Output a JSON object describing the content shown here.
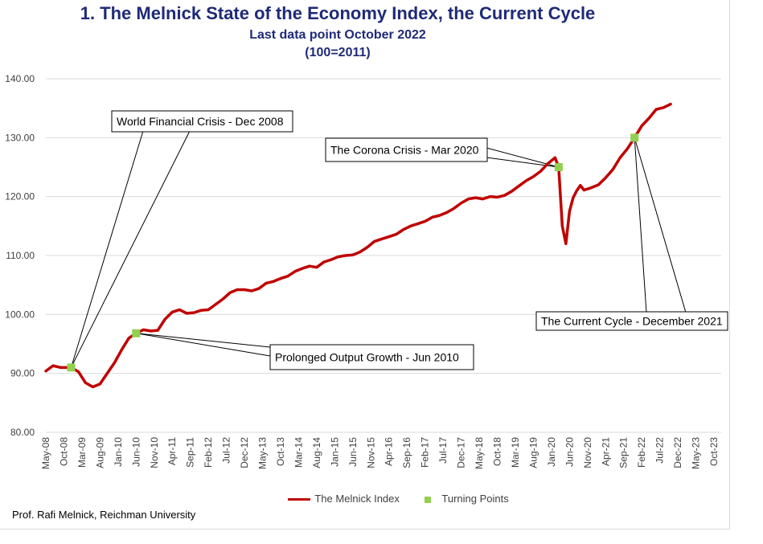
{
  "title": "1.  The Melnick State of the Economy Index, the Current Cycle",
  "subtitle1": "Last data point October 2022",
  "subtitle2": "(100=2011)",
  "credit": "Prof. Rafi Melnick, Reichman University",
  "colors": {
    "series": "#c00000",
    "points": "#92d050",
    "title": "#1f2a78",
    "grid": "#d9d9d9"
  },
  "chart_data": {
    "type": "line",
    "title": "1.  The Melnick State of the Economy Index, the Current Cycle",
    "xlabel": "",
    "ylabel": "",
    "ylim": [
      80,
      140
    ],
    "yticks": [
      "80.00",
      "90.00",
      "100.00",
      "110.00",
      "120.00",
      "130.00",
      "140.00"
    ],
    "xlim": [
      "2008-05",
      "2023-12"
    ],
    "xticks": [
      "May-08",
      "Oct-08",
      "Mar-09",
      "Aug-09",
      "Jan-10",
      "Jun-10",
      "Nov-10",
      "Apr-11",
      "Sep-11",
      "Feb-12",
      "Jul-12",
      "Dec-12",
      "May-13",
      "Oct-13",
      "Mar-14",
      "Aug-14",
      "Jan-15",
      "Jun-15",
      "Nov-15",
      "Apr-16",
      "Sep-16",
      "Feb-17",
      "Jul-17",
      "Dec-17",
      "May-18",
      "Oct-18",
      "Mar-19",
      "Aug-19",
      "Jan-20",
      "Jun-20",
      "Nov-20",
      "Apr-21",
      "Sep-21",
      "Feb-22",
      "Jul-22",
      "Dec-22",
      "May-23",
      "Oct-23"
    ],
    "grid": "horizontal",
    "legend_position": "bottom",
    "series": [
      {
        "name": "The Melnick Index",
        "points": [
          [
            "2008-05",
            90.4
          ],
          [
            "2008-07",
            91.3
          ],
          [
            "2008-09",
            91.0
          ],
          [
            "2008-12",
            91.0
          ],
          [
            "2009-02",
            90.3
          ],
          [
            "2009-04",
            88.4
          ],
          [
            "2009-06",
            87.7
          ],
          [
            "2009-08",
            88.2
          ],
          [
            "2009-10",
            90.0
          ],
          [
            "2009-12",
            91.8
          ],
          [
            "2010-02",
            94.0
          ],
          [
            "2010-04",
            96.0
          ],
          [
            "2010-06",
            96.8
          ],
          [
            "2010-08",
            97.4
          ],
          [
            "2010-10",
            97.2
          ],
          [
            "2010-12",
            97.3
          ],
          [
            "2011-02",
            99.2
          ],
          [
            "2011-04",
            100.4
          ],
          [
            "2011-06",
            100.8
          ],
          [
            "2011-08",
            100.2
          ],
          [
            "2011-10",
            100.3
          ],
          [
            "2011-12",
            100.7
          ],
          [
            "2012-02",
            100.8
          ],
          [
            "2012-04",
            101.7
          ],
          [
            "2012-06",
            102.6
          ],
          [
            "2012-08",
            103.7
          ],
          [
            "2012-10",
            104.2
          ],
          [
            "2012-12",
            104.2
          ],
          [
            "2013-02",
            104.0
          ],
          [
            "2013-04",
            104.4
          ],
          [
            "2013-06",
            105.3
          ],
          [
            "2013-08",
            105.6
          ],
          [
            "2013-10",
            106.1
          ],
          [
            "2013-12",
            106.5
          ],
          [
            "2014-02",
            107.3
          ],
          [
            "2014-04",
            107.8
          ],
          [
            "2014-06",
            108.2
          ],
          [
            "2014-08",
            108.0
          ],
          [
            "2014-10",
            108.9
          ],
          [
            "2014-12",
            109.3
          ],
          [
            "2015-02",
            109.8
          ],
          [
            "2015-04",
            110.0
          ],
          [
            "2015-06",
            110.1
          ],
          [
            "2015-08",
            110.6
          ],
          [
            "2015-10",
            111.4
          ],
          [
            "2015-12",
            112.4
          ],
          [
            "2016-02",
            112.8
          ],
          [
            "2016-04",
            113.2
          ],
          [
            "2016-06",
            113.6
          ],
          [
            "2016-08",
            114.4
          ],
          [
            "2016-10",
            115.0
          ],
          [
            "2016-12",
            115.4
          ],
          [
            "2017-02",
            115.8
          ],
          [
            "2017-04",
            116.5
          ],
          [
            "2017-06",
            116.8
          ],
          [
            "2017-08",
            117.3
          ],
          [
            "2017-10",
            118.0
          ],
          [
            "2017-12",
            118.9
          ],
          [
            "2018-02",
            119.6
          ],
          [
            "2018-04",
            119.8
          ],
          [
            "2018-06",
            119.6
          ],
          [
            "2018-08",
            120.0
          ],
          [
            "2018-10",
            119.9
          ],
          [
            "2018-12",
            120.2
          ],
          [
            "2019-02",
            120.9
          ],
          [
            "2019-04",
            121.8
          ],
          [
            "2019-06",
            122.7
          ],
          [
            "2019-08",
            123.4
          ],
          [
            "2019-10",
            124.3
          ],
          [
            "2019-12",
            125.6
          ],
          [
            "2020-02",
            126.6
          ],
          [
            "2020-03",
            125.0
          ],
          [
            "2020-04",
            115.0
          ],
          [
            "2020-05",
            112.0
          ],
          [
            "2020-06",
            117.5
          ],
          [
            "2020-07",
            119.8
          ],
          [
            "2020-08",
            121.0
          ],
          [
            "2020-09",
            121.9
          ],
          [
            "2020-10",
            121.1
          ],
          [
            "2020-12",
            121.5
          ],
          [
            "2021-02",
            122.0
          ],
          [
            "2021-04",
            123.2
          ],
          [
            "2021-06",
            124.6
          ],
          [
            "2021-08",
            126.6
          ],
          [
            "2021-10",
            128.1
          ],
          [
            "2021-12",
            130.0
          ],
          [
            "2022-02",
            132.0
          ],
          [
            "2022-04",
            133.3
          ],
          [
            "2022-06",
            134.8
          ],
          [
            "2022-08",
            135.1
          ],
          [
            "2022-10",
            135.7
          ]
        ]
      },
      {
        "name": "Turning Points",
        "points": [
          [
            "2008-12",
            91.0
          ],
          [
            "2010-06",
            96.8
          ],
          [
            "2020-03",
            125.0
          ],
          [
            "2021-12",
            130.0
          ]
        ]
      }
    ],
    "annotations": [
      {
        "text": "World Financial Crisis - Dec 2008",
        "target": "2008-12"
      },
      {
        "text": "Prolonged Output Growth - Jun 2010",
        "target": "2010-06"
      },
      {
        "text": "The Corona Crisis - Mar 2020",
        "target": "2020-03"
      },
      {
        "text": "The Current Cycle - December 2021",
        "target": "2021-12"
      }
    ]
  }
}
